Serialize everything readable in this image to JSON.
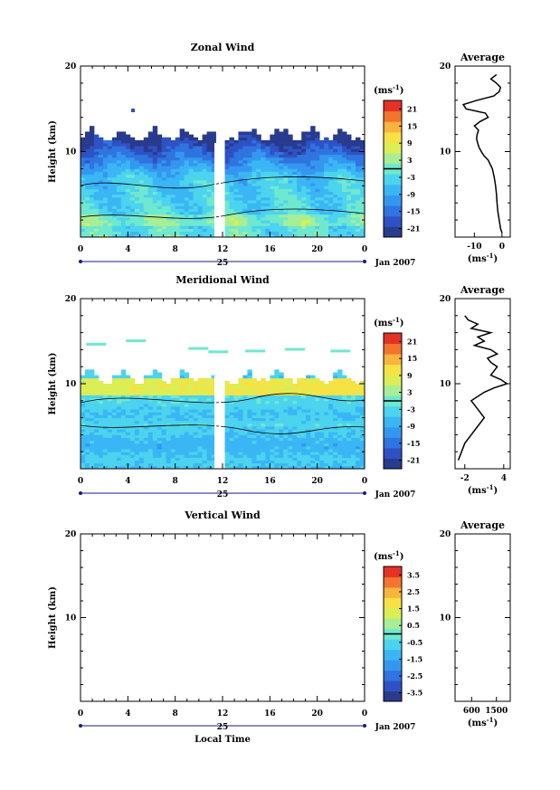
{
  "chart_data": [
    {
      "type": "heatmap",
      "title": "Zonal Wind",
      "ylabel": "Height (km)",
      "ylim": [
        0,
        20
      ],
      "yticks": [
        "20",
        "10"
      ],
      "xticks": [
        "0",
        "4",
        "8",
        "12",
        "16",
        "20",
        "0"
      ],
      "date_label": "25",
      "month_label": "Jan 2007",
      "colorbar": {
        "unit": "(ms",
        "unit_exp": "-1",
        "unit_close": ")",
        "labels": [
          "21",
          "15",
          "9",
          "3",
          "-3",
          "-9",
          "-15",
          "-21"
        ],
        "range": [
          -24,
          24
        ]
      },
      "profile": {
        "title": "Average",
        "yticks": [
          "20",
          "10"
        ],
        "xticks": [
          "-10",
          "0"
        ],
        "xlim": [
          -17,
          3
        ],
        "xlabel": "(ms",
        "xlabel_exp": "-1",
        "xlabel_close": ")",
        "heights": [
          0.5,
          1,
          2,
          3,
          4,
          5,
          6,
          7,
          8,
          9,
          9.5,
          10,
          10.5,
          11,
          11.5,
          12,
          12.5,
          13,
          13.5,
          14,
          14.5,
          15,
          15.5,
          16,
          16.5,
          17,
          17.5,
          18,
          18.5,
          19
        ],
        "values": [
          0,
          -0.5,
          -1,
          -1.5,
          -1.8,
          -2,
          -2.3,
          -2.8,
          -3.5,
          -5,
          -6.5,
          -7.5,
          -8.3,
          -8.8,
          -9.2,
          -9,
          -8.5,
          -10,
          -8,
          -5,
          -6,
          -13,
          -14,
          -9,
          -3,
          -1,
          -0.5,
          -2,
          -4,
          -2
        ]
      }
    },
    {
      "type": "heatmap",
      "title": "Meridional Wind",
      "ylabel": "Height (km)",
      "ylim": [
        0,
        20
      ],
      "yticks": [
        "20",
        "10"
      ],
      "xticks": [
        "0",
        "4",
        "8",
        "12",
        "16",
        "20",
        "0"
      ],
      "date_label": "25",
      "month_label": "Jan 2007",
      "colorbar": {
        "unit": "(ms",
        "unit_exp": "-1",
        "unit_close": ")",
        "labels": [
          "21",
          "15",
          "9",
          "3",
          "-3",
          "-9",
          "-15",
          "-21"
        ],
        "range": [
          -24,
          24
        ]
      },
      "profile": {
        "title": "Average",
        "yticks": [
          "20",
          "10"
        ],
        "xticks": [
          "-2",
          "4"
        ],
        "xlim": [
          -3.5,
          5
        ],
        "xlabel": "(ms",
        "xlabel_exp": "-1",
        "xlabel_close": ")",
        "heights": [
          1,
          2,
          3,
          4,
          5,
          6,
          7,
          8,
          9,
          9.5,
          10,
          10.5,
          11,
          11.5,
          12,
          12.5,
          13,
          13.5,
          14,
          14.5,
          15,
          15.5,
          16,
          16.5,
          17,
          17.5,
          18
        ],
        "values": [
          -3,
          -2.5,
          -2,
          -1,
          0,
          1,
          0,
          -1,
          1,
          2.5,
          4.5,
          3.5,
          2,
          2.5,
          3,
          2,
          1.5,
          3,
          2,
          -0.5,
          1,
          0,
          2,
          -1,
          0,
          -1.5,
          -2
        ]
      }
    },
    {
      "type": "heatmap",
      "title": "Vertical Wind",
      "ylabel": "Height (km)",
      "xlabel": "Local Time",
      "ylim": [
        0,
        20
      ],
      "yticks": [
        "20",
        "10"
      ],
      "xticks": [
        "0",
        "4",
        "8",
        "12",
        "16",
        "20",
        "0"
      ],
      "date_label": "25",
      "month_label": "Jan 2007",
      "colorbar": {
        "unit": "(ms",
        "unit_exp": "-1",
        "unit_close": ")",
        "labels": [
          "3.5",
          "2.5",
          "1.5",
          "0.5",
          "-0.5",
          "-1.5",
          "-2.5",
          "-3.5"
        ],
        "range": [
          -4,
          4
        ]
      },
      "profile": {
        "title": "Average",
        "yticks": [
          "20",
          "10"
        ],
        "xticks": [
          "600",
          "1500"
        ],
        "xlim": [
          0,
          2000
        ],
        "xlabel": "(ms",
        "xlabel_exp": "-1",
        "xlabel_close": ")",
        "heights": [],
        "values": []
      }
    }
  ]
}
